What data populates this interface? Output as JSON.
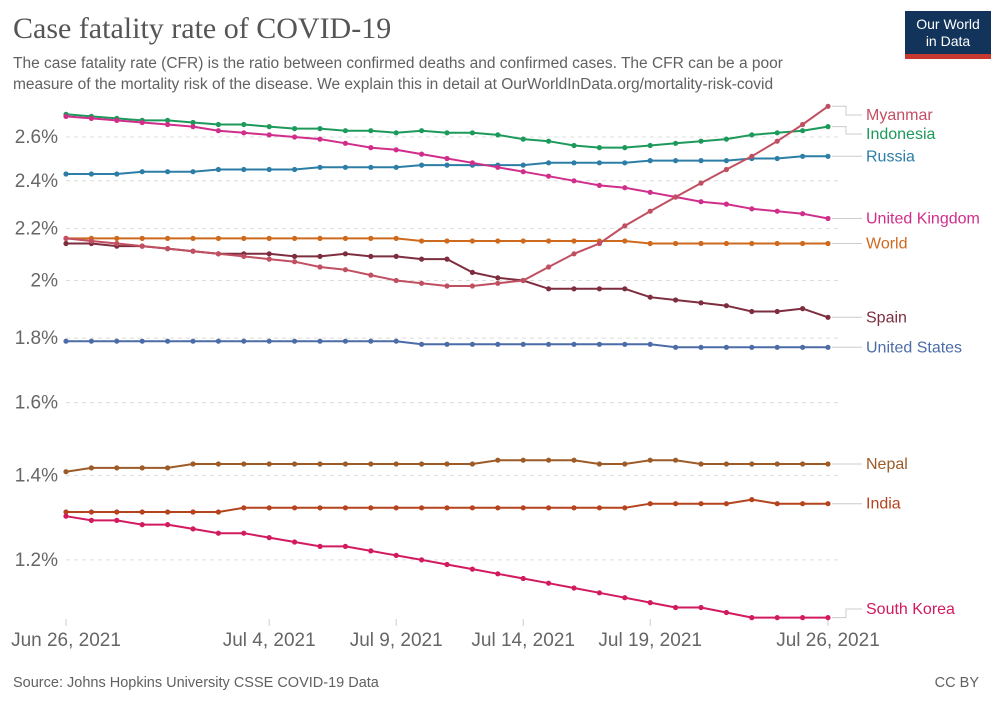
{
  "header": {
    "title": "Case fatality rate of COVID-19",
    "subtitle_line1": "The case fatality rate (CFR) is the ratio between confirmed deaths and confirmed cases. The CFR can be a poor",
    "subtitle_line2": "measure of the mortality risk of the disease. We explain this in detail at OurWorldInData.org/mortality-risk-covid",
    "logo": {
      "line1": "Our World",
      "line2": "in Data",
      "bg_color": "#12335a",
      "accent_color": "#c7392f"
    }
  },
  "footer": {
    "source": "Source: Johns Hopkins University CSSE COVID-19 Data",
    "license": "CC BY"
  },
  "chart_data": {
    "type": "line",
    "title": "Case fatality rate of COVID-19",
    "y_scale": "log",
    "unit": "%",
    "ylim": [
      1.05,
      2.78
    ],
    "grid": "horizontal-dashed",
    "legend_position": "right-end-labels",
    "x_dates": [
      "Jun 26",
      "Jun 27",
      "Jun 28",
      "Jun 29",
      "Jun 30",
      "Jul 1",
      "Jul 2",
      "Jul 3",
      "Jul 4",
      "Jul 5",
      "Jul 6",
      "Jul 7",
      "Jul 8",
      "Jul 9",
      "Jul 10",
      "Jul 11",
      "Jul 12",
      "Jul 13",
      "Jul 14",
      "Jul 15",
      "Jul 16",
      "Jul 17",
      "Jul 18",
      "Jul 19",
      "Jul 20",
      "Jul 21",
      "Jul 22",
      "Jul 23",
      "Jul 24",
      "Jul 25",
      "Jul 26"
    ],
    "x_ticks": [
      {
        "date_index": 0,
        "label": "Jun 26, 2021"
      },
      {
        "date_index": 8,
        "label": "Jul 4, 2021"
      },
      {
        "date_index": 13,
        "label": "Jul 9, 2021"
      },
      {
        "date_index": 18,
        "label": "Jul 14, 2021"
      },
      {
        "date_index": 23,
        "label": "Jul 19, 2021"
      },
      {
        "date_index": 30,
        "label": "Jul 26, 2021"
      }
    ],
    "y_ticks": [
      {
        "value": 2.6,
        "label": "2.6%"
      },
      {
        "value": 2.4,
        "label": "2.4%"
      },
      {
        "value": 2.2,
        "label": "2.2%"
      },
      {
        "value": 2.0,
        "label": "2%"
      },
      {
        "value": 1.8,
        "label": "1.8%"
      },
      {
        "value": 1.6,
        "label": "1.6%"
      },
      {
        "value": 1.4,
        "label": "1.4%"
      },
      {
        "value": 1.2,
        "label": "1.2%"
      }
    ],
    "series": [
      {
        "name": "Myanmar",
        "color": "#C14F62",
        "values": [
          2.16,
          2.15,
          2.14,
          2.13,
          2.12,
          2.11,
          2.1,
          2.09,
          2.08,
          2.07,
          2.05,
          2.04,
          2.02,
          2.0,
          1.99,
          1.98,
          1.98,
          1.99,
          2.0,
          2.05,
          2.1,
          2.14,
          2.21,
          2.27,
          2.33,
          2.39,
          2.45,
          2.51,
          2.58,
          2.66,
          2.75
        ]
      },
      {
        "name": "Indonesia",
        "color": "#1D9A5B",
        "values": [
          2.71,
          2.7,
          2.69,
          2.68,
          2.68,
          2.67,
          2.66,
          2.66,
          2.65,
          2.64,
          2.64,
          2.63,
          2.63,
          2.62,
          2.63,
          2.62,
          2.62,
          2.61,
          2.59,
          2.58,
          2.56,
          2.55,
          2.55,
          2.56,
          2.57,
          2.58,
          2.59,
          2.61,
          2.62,
          2.63,
          2.65
        ]
      },
      {
        "name": "Russia",
        "color": "#2C7EA6",
        "values": [
          2.43,
          2.43,
          2.43,
          2.44,
          2.44,
          2.44,
          2.45,
          2.45,
          2.45,
          2.45,
          2.46,
          2.46,
          2.46,
          2.46,
          2.47,
          2.47,
          2.47,
          2.47,
          2.47,
          2.48,
          2.48,
          2.48,
          2.48,
          2.49,
          2.49,
          2.49,
          2.49,
          2.5,
          2.5,
          2.51,
          2.51
        ]
      },
      {
        "name": "United Kingdom",
        "color": "#D12E8B",
        "values": [
          2.7,
          2.69,
          2.68,
          2.67,
          2.66,
          2.65,
          2.63,
          2.62,
          2.61,
          2.6,
          2.59,
          2.57,
          2.55,
          2.54,
          2.52,
          2.5,
          2.48,
          2.46,
          2.44,
          2.42,
          2.4,
          2.38,
          2.37,
          2.35,
          2.33,
          2.31,
          2.3,
          2.28,
          2.27,
          2.26,
          2.24
        ]
      },
      {
        "name": "World",
        "color": "#CE6A1E",
        "values": [
          2.16,
          2.16,
          2.16,
          2.16,
          2.16,
          2.16,
          2.16,
          2.16,
          2.16,
          2.16,
          2.16,
          2.16,
          2.16,
          2.16,
          2.15,
          2.15,
          2.15,
          2.15,
          2.15,
          2.15,
          2.15,
          2.15,
          2.15,
          2.14,
          2.14,
          2.14,
          2.14,
          2.14,
          2.14,
          2.14,
          2.14
        ]
      },
      {
        "name": "Spain",
        "color": "#7E2D3F",
        "values": [
          2.14,
          2.14,
          2.13,
          2.13,
          2.12,
          2.11,
          2.1,
          2.1,
          2.1,
          2.09,
          2.09,
          2.1,
          2.09,
          2.09,
          2.08,
          2.08,
          2.03,
          2.01,
          2.0,
          1.97,
          1.97,
          1.97,
          1.97,
          1.94,
          1.93,
          1.92,
          1.91,
          1.89,
          1.89,
          1.9,
          1.87
        ]
      },
      {
        "name": "United States",
        "color": "#4C6CA8",
        "values": [
          1.79,
          1.79,
          1.79,
          1.79,
          1.79,
          1.79,
          1.79,
          1.79,
          1.79,
          1.79,
          1.79,
          1.79,
          1.79,
          1.79,
          1.78,
          1.78,
          1.78,
          1.78,
          1.78,
          1.78,
          1.78,
          1.78,
          1.78,
          1.78,
          1.77,
          1.77,
          1.77,
          1.77,
          1.77,
          1.77,
          1.77
        ]
      },
      {
        "name": "Nepal",
        "color": "#9D5B28",
        "values": [
          1.41,
          1.42,
          1.42,
          1.42,
          1.42,
          1.43,
          1.43,
          1.43,
          1.43,
          1.43,
          1.43,
          1.43,
          1.43,
          1.43,
          1.43,
          1.43,
          1.43,
          1.44,
          1.44,
          1.44,
          1.44,
          1.43,
          1.43,
          1.44,
          1.44,
          1.43,
          1.43,
          1.43,
          1.43,
          1.43,
          1.43
        ]
      },
      {
        "name": "India",
        "color": "#B5431E",
        "values": [
          1.31,
          1.31,
          1.31,
          1.31,
          1.31,
          1.31,
          1.31,
          1.32,
          1.32,
          1.32,
          1.32,
          1.32,
          1.32,
          1.32,
          1.32,
          1.32,
          1.32,
          1.32,
          1.32,
          1.32,
          1.32,
          1.32,
          1.32,
          1.33,
          1.33,
          1.33,
          1.33,
          1.34,
          1.33,
          1.33,
          1.33
        ]
      },
      {
        "name": "South Korea",
        "color": "#D21A5F",
        "values": [
          1.3,
          1.29,
          1.29,
          1.28,
          1.28,
          1.27,
          1.26,
          1.26,
          1.25,
          1.24,
          1.23,
          1.23,
          1.22,
          1.21,
          1.2,
          1.19,
          1.18,
          1.17,
          1.16,
          1.15,
          1.14,
          1.13,
          1.12,
          1.11,
          1.1,
          1.1,
          1.09,
          1.08,
          1.08,
          1.08,
          1.08
        ]
      }
    ]
  }
}
